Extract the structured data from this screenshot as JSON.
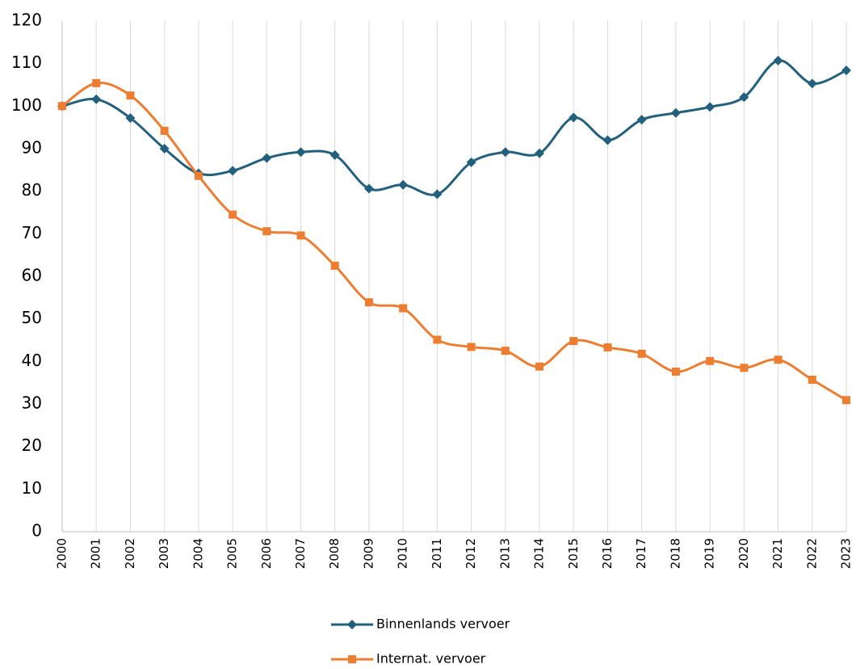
{
  "chart_data": {
    "type": "line",
    "categories": [
      "2000",
      "2001",
      "2002",
      "2003",
      "2004",
      "2005",
      "2006",
      "2007",
      "2008",
      "2009",
      "2010",
      "2011",
      "2012",
      "2013",
      "2014",
      "2015",
      "2016",
      "2017",
      "2018",
      "2019",
      "2020",
      "2021",
      "2022",
      "2023"
    ],
    "series": [
      {
        "name": "Binnenlands vervoer",
        "color": "#22607e",
        "marker": "diamond",
        "values": [
          100,
          101.6,
          97.2,
          90,
          84.2,
          84.8,
          87.8,
          89.2,
          88.5,
          80.6,
          81.5,
          79.3,
          86.8,
          89.2,
          88.9,
          97.3,
          92,
          96.8,
          98.4,
          99.8,
          102.1,
          110.7,
          105.3,
          108.4
        ]
      },
      {
        "name": "Internat. vervoer",
        "color": "#ed7d31",
        "marker": "square",
        "values": [
          100,
          105.4,
          102.5,
          94.2,
          83.6,
          74.5,
          70.6,
          69.6,
          62.5,
          53.9,
          52.5,
          45.1,
          43.4,
          42.5,
          38.8,
          44.8,
          43.3,
          41.8,
          37.6,
          40.1,
          38.5,
          40.4,
          35.7,
          30.9
        ]
      }
    ],
    "ylim": [
      0,
      120
    ],
    "yticks": [
      0,
      10,
      20,
      30,
      40,
      50,
      60,
      70,
      80,
      90,
      100,
      110,
      120
    ],
    "grid": "x",
    "smooth": true,
    "legend": "bottom"
  }
}
